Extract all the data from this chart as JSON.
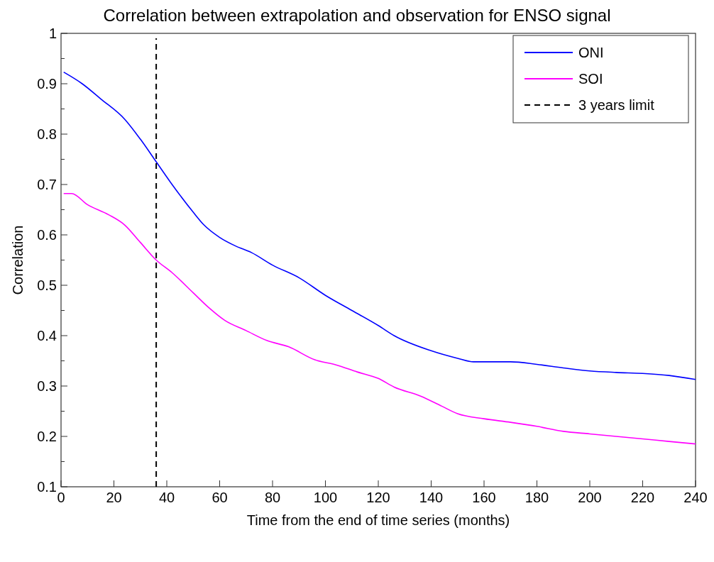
{
  "chart_data": {
    "type": "line",
    "title": "Correlation between extrapolation and observation for ENSO signal",
    "xlabel": "Time from the end of time series (months)",
    "ylabel": "Correlation",
    "xlim": [
      0,
      240
    ],
    "xticks": [
      0,
      20,
      40,
      60,
      80,
      100,
      120,
      140,
      160,
      180,
      200,
      220,
      240
    ],
    "ylim": [
      0.1,
      1
    ],
    "yticks": [
      0.1,
      {
        "value": 0.15,
        "label": null
      },
      0.2,
      {
        "value": 0.25,
        "label": null
      },
      0.3,
      {
        "value": 0.35,
        "label": null
      },
      0.4,
      {
        "value": 0.45,
        "label": null
      },
      0.5,
      {
        "value": 0.55,
        "label": null
      },
      0.6,
      {
        "value": 0.65,
        "label": null
      },
      0.7,
      {
        "value": 0.75,
        "label": null
      },
      0.8,
      {
        "value": 0.85,
        "label": null
      },
      0.9,
      {
        "value": 0.95,
        "label": null
      },
      1
    ],
    "grid": false,
    "legend": "top right",
    "marker": "none",
    "line_style": "solid",
    "series": [
      {
        "name": "ONI",
        "color": "#0000ff",
        "x": [
          1,
          8,
          15,
          24,
          30,
          36,
          42,
          50,
          54,
          60,
          66,
          72,
          80,
          90,
          100,
          110,
          120,
          126,
          140,
          150,
          156,
          170,
          180,
          190,
          200,
          210,
          220,
          230,
          240
        ],
        "values": [
          0.923,
          0.9,
          0.87,
          0.83,
          0.79,
          0.745,
          0.7,
          0.645,
          0.62,
          0.595,
          0.578,
          0.565,
          0.54,
          0.515,
          0.48,
          0.45,
          0.42,
          0.4,
          0.37,
          0.355,
          0.348,
          0.348,
          0.343,
          0.336,
          0.33,
          0.327,
          0.325,
          0.321,
          0.313
        ]
      },
      {
        "name": "SOI",
        "color": "#ff00ff",
        "x": [
          1,
          4,
          10,
          18,
          24,
          30,
          36,
          42,
          50,
          56,
          62,
          70,
          78,
          86,
          96,
          104,
          112,
          120,
          126,
          136,
          144,
          150,
          160,
          170,
          180,
          190,
          200,
          210,
          220,
          230,
          240
        ],
        "values": [
          0.682,
          0.682,
          0.66,
          0.64,
          0.62,
          0.585,
          0.55,
          0.525,
          0.485,
          0.455,
          0.43,
          0.41,
          0.39,
          0.378,
          0.352,
          0.342,
          0.328,
          0.315,
          0.298,
          0.28,
          0.26,
          0.245,
          0.235,
          0.228,
          0.22,
          0.21,
          0.205,
          0.2,
          0.195,
          0.19,
          0.185
        ]
      },
      {
        "name": "3 years limit",
        "color": "#000000",
        "line_style": "dashed",
        "x": [
          36,
          36
        ],
        "values": [
          0.1,
          0.99
        ]
      }
    ]
  }
}
